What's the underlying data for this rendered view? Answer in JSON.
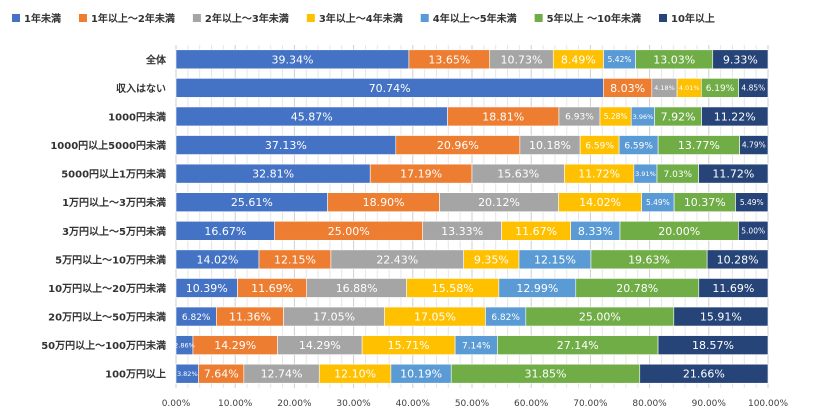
{
  "chart_data": {
    "type": "bar",
    "orientation": "horizontal",
    "stacked": "percent",
    "legend_position": "top",
    "grid": true,
    "xlim": [
      0,
      100
    ],
    "x_ticks": [
      "0.00%",
      "10.00%",
      "20.00%",
      "30.00%",
      "40.00%",
      "50.00%",
      "60.00%",
      "70.00%",
      "80.00%",
      "90.00%",
      "100.00%"
    ],
    "categories": [
      "全体",
      "収入はない",
      "1000円未満",
      "1000円以上5000円未満",
      "5000円以上1万円未満",
      "1万円以上～3万円未満",
      "3万円以上～5万円未満",
      "5万円以上～10万円未満",
      "10万円以上～20万円未満",
      "20万円以上～50万円未満",
      "50万円以上～100万円未満",
      "100万円以上"
    ],
    "series": [
      {
        "name": "1年未満",
        "color": "#4472c4",
        "values": [
          39.34,
          70.74,
          45.87,
          37.13,
          32.81,
          25.61,
          16.67,
          14.02,
          10.39,
          6.82,
          2.86,
          3.82
        ]
      },
      {
        "name": "1年以上～2年未満",
        "color": "#ed7d31",
        "values": [
          13.65,
          8.03,
          18.81,
          20.96,
          17.19,
          18.9,
          25.0,
          12.15,
          11.69,
          11.36,
          14.29,
          7.64
        ]
      },
      {
        "name": "2年以上～3年未満",
        "color": "#a5a5a5",
        "values": [
          10.73,
          4.18,
          6.93,
          10.18,
          15.63,
          20.12,
          13.33,
          22.43,
          16.88,
          17.05,
          14.29,
          12.74
        ]
      },
      {
        "name": "3年以上～4年未満",
        "color": "#ffc000",
        "values": [
          8.49,
          4.01,
          5.28,
          6.59,
          11.72,
          14.02,
          11.67,
          9.35,
          15.58,
          17.05,
          15.71,
          12.1
        ]
      },
      {
        "name": "4年以上～5年未満",
        "color": "#5b9bd5",
        "values": [
          5.42,
          0,
          3.96,
          6.59,
          3.91,
          5.49,
          8.33,
          12.15,
          12.99,
          6.82,
          7.14,
          10.19
        ]
      },
      {
        "name": "5年以上 ～10年未満",
        "color": "#70ad47",
        "values": [
          13.03,
          6.19,
          7.92,
          13.77,
          7.03,
          10.37,
          20.0,
          19.63,
          20.78,
          25.0,
          27.14,
          31.85
        ]
      },
      {
        "name": "10年以上",
        "color": "#264478",
        "values": [
          9.33,
          4.85,
          11.22,
          4.79,
          11.72,
          5.49,
          5.0,
          10.28,
          11.69,
          15.91,
          18.57,
          21.66
        ]
      }
    ],
    "labels": [
      [
        "39.34%",
        "13.65%",
        "10.73%",
        "8.49%",
        "5.42%",
        "13.03%",
        "9.33%"
      ],
      [
        "70.74%",
        "8.03%",
        "4.18%",
        "4.01%",
        "",
        "6.19%",
        "4.85%"
      ],
      [
        "45.87%",
        "18.81%",
        "6.93%",
        "5.28%",
        "3.96%",
        "7.92%",
        "11.22%"
      ],
      [
        "37.13%",
        "20.96%",
        "10.18%",
        "6.59%",
        "6.59%",
        "13.77%",
        "4.79%"
      ],
      [
        "32.81%",
        "17.19%",
        "15.63%",
        "11.72%",
        "3.91%",
        "7.03%",
        "11.72%"
      ],
      [
        "25.61%",
        "18.90%",
        "20.12%",
        "14.02%",
        "5.49%",
        "10.37%",
        "5.49%"
      ],
      [
        "16.67%",
        "25.00%",
        "13.33%",
        "11.67%",
        "8.33%",
        "20.00%",
        "5.00%"
      ],
      [
        "14.02%",
        "12.15%",
        "22.43%",
        "9.35%",
        "12.15%",
        "19.63%",
        "10.28%"
      ],
      [
        "10.39%",
        "11.69%",
        "16.88%",
        "15.58%",
        "12.99%",
        "20.78%",
        "11.69%"
      ],
      [
        "6.82%",
        "11.36%",
        "17.05%",
        "17.05%",
        "6.82%",
        "25.00%",
        "15.91%"
      ],
      [
        "2.86%",
        "14.29%",
        "14.29%",
        "15.71%",
        "7.14%",
        "27.14%",
        "18.57%"
      ],
      [
        "3.82%",
        "7.64%",
        "12.74%",
        "12.10%",
        "10.19%",
        "31.85%",
        "21.66%"
      ]
    ]
  }
}
